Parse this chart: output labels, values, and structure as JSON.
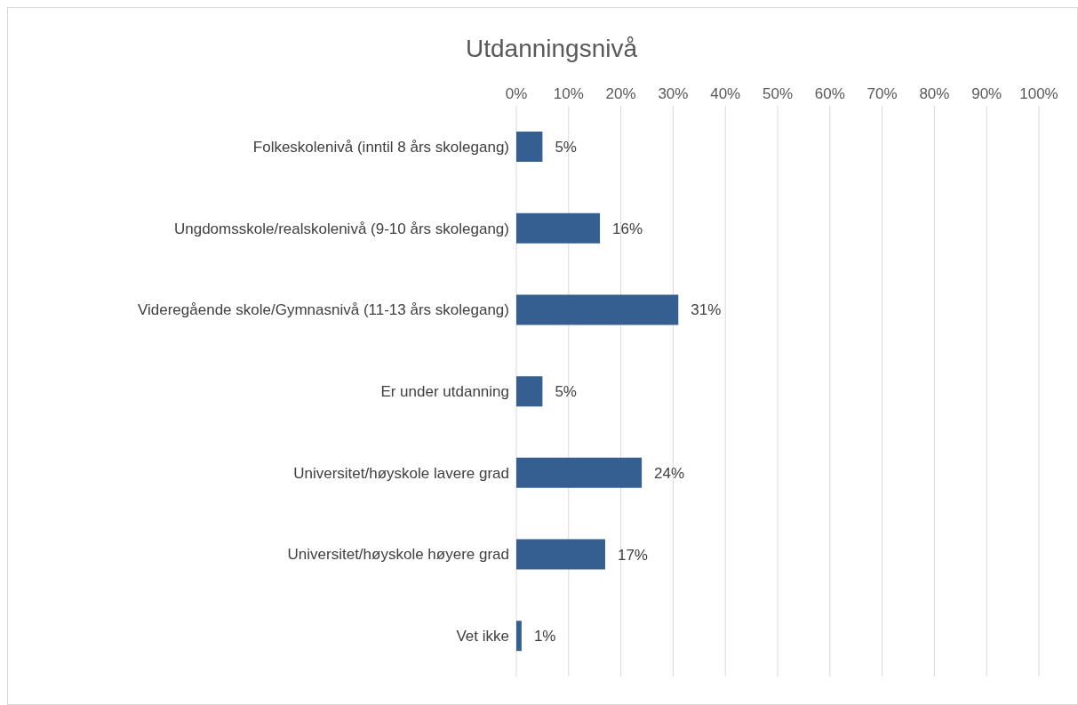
{
  "chart_data": {
    "type": "bar",
    "orientation": "horizontal",
    "title": "Utdanningsnivå",
    "categories": [
      "Folkeskolenivå (inntil 8 års skolegang)",
      "Ungdomsskole/realskolenivå (9-10 års skolegang)",
      "Videregående skole/Gymnasnivå (11-13 års skolegang)",
      "Er under utdanning",
      "Universitet/høyskole lavere grad",
      "Universitet/høyskole høyere grad",
      "Vet ikke"
    ],
    "values": [
      5,
      16,
      31,
      5,
      24,
      17,
      1
    ],
    "value_labels": [
      "5%",
      "16%",
      "31%",
      "5%",
      "24%",
      "17%",
      "1%"
    ],
    "color": "#365f91",
    "xlim": [
      0,
      100
    ],
    "xticks": [
      {
        "value": 0,
        "label": "0%"
      },
      {
        "value": 10,
        "label": "10%"
      },
      {
        "value": 20,
        "label": "20%"
      },
      {
        "value": 30,
        "label": "30%"
      },
      {
        "value": 40,
        "label": "40%"
      },
      {
        "value": 50,
        "label": "50%"
      },
      {
        "value": 60,
        "label": "60%"
      },
      {
        "value": 70,
        "label": "70%"
      },
      {
        "value": 80,
        "label": "80%"
      },
      {
        "value": 90,
        "label": "90%"
      },
      {
        "value": 100,
        "label": "100%"
      }
    ],
    "grid": "x",
    "legend": false
  }
}
